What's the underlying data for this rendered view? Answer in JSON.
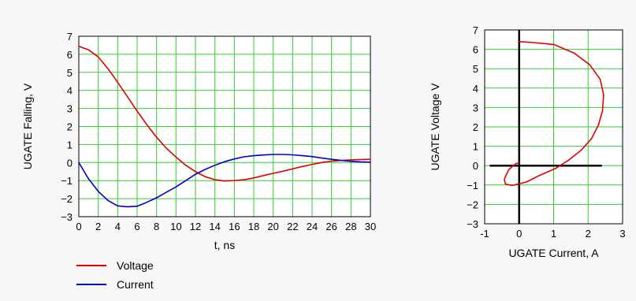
{
  "chart_data": [
    {
      "type": "line",
      "title": "",
      "xlabel": "t, ns",
      "ylabel": "UGATE Falling, V",
      "xlim": [
        0,
        30
      ],
      "ylim": [
        -3,
        7
      ],
      "xticks": [
        0,
        2,
        4,
        6,
        8,
        10,
        12,
        14,
        16,
        18,
        20,
        22,
        24,
        26,
        28,
        30
      ],
      "yticks": [
        -3,
        -2,
        -1,
        0,
        1,
        2,
        3,
        4,
        5,
        6,
        7
      ],
      "grid": true,
      "legend": "bottom-left",
      "series": [
        {
          "name": "Voltage",
          "color": "#e00000",
          "x": [
            0,
            1,
            2,
            3,
            4,
            5,
            6,
            7,
            8,
            9,
            10,
            11,
            12,
            13,
            14,
            15,
            16,
            17,
            18,
            19,
            20,
            21,
            22,
            23,
            24,
            25,
            26,
            27,
            28,
            29,
            30
          ],
          "y": [
            6.45,
            6.25,
            5.85,
            5.2,
            4.45,
            3.65,
            2.85,
            2.1,
            1.4,
            0.8,
            0.3,
            -0.15,
            -0.5,
            -0.78,
            -0.95,
            -1.02,
            -1.0,
            -0.95,
            -0.85,
            -0.72,
            -0.6,
            -0.48,
            -0.35,
            -0.22,
            -0.1,
            0.0,
            0.08,
            0.12,
            0.15,
            0.17,
            0.18
          ]
        },
        {
          "name": "Current",
          "color": "#0000c8",
          "x": [
            0,
            1,
            2,
            3,
            4,
            5,
            6,
            7,
            8,
            9,
            10,
            11,
            12,
            13,
            14,
            15,
            16,
            17,
            18,
            19,
            20,
            21,
            22,
            23,
            24,
            25,
            26,
            27,
            28,
            29,
            30
          ],
          "y": [
            0.0,
            -0.9,
            -1.6,
            -2.1,
            -2.4,
            -2.45,
            -2.42,
            -2.2,
            -1.95,
            -1.65,
            -1.35,
            -1.0,
            -0.65,
            -0.38,
            -0.15,
            0.05,
            0.2,
            0.32,
            0.38,
            0.42,
            0.45,
            0.45,
            0.43,
            0.38,
            0.33,
            0.25,
            0.18,
            0.12,
            0.07,
            0.04,
            0.02
          ]
        }
      ]
    },
    {
      "type": "line",
      "title": "",
      "xlabel": "UGATE Current, A",
      "ylabel": "UGATE Voltage V",
      "xlim": [
        -1,
        3
      ],
      "ylim": [
        -3,
        7
      ],
      "xticks": [
        -1,
        0,
        1,
        2,
        3
      ],
      "yticks": [
        -3,
        -2,
        -1,
        0,
        1,
        2,
        3,
        4,
        5,
        6,
        7
      ],
      "grid": true,
      "series": [
        {
          "color": "#e00000",
          "x": [
            0.0,
            0.4,
            1.0,
            1.6,
            2.05,
            2.35,
            2.45,
            2.42,
            2.3,
            2.1,
            1.8,
            1.45,
            1.05,
            0.6,
            0.2,
            -0.2,
            -0.4,
            -0.43,
            -0.3,
            -0.1,
            0.0
          ],
          "y": [
            6.4,
            6.35,
            6.25,
            5.8,
            5.2,
            4.45,
            3.65,
            2.85,
            2.1,
            1.4,
            0.8,
            0.3,
            -0.15,
            -0.5,
            -0.85,
            -1.02,
            -0.95,
            -0.7,
            -0.2,
            0.1,
            0.15
          ]
        }
      ],
      "axis_lines": {
        "x": 0,
        "y": 0
      },
      "horizontal_segment": {
        "x": [
          -0.85,
          2.4
        ],
        "y": 0
      }
    }
  ],
  "legend": [
    {
      "label": "Voltage",
      "color": "#e00000"
    },
    {
      "label": "Current",
      "color": "#0000c8"
    }
  ]
}
